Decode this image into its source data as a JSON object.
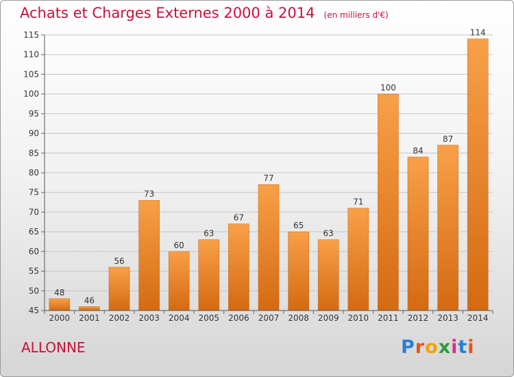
{
  "header": {
    "title": "Achats et Charges Externes 2000 à 2014",
    "unit": "(en milliers d'€)"
  },
  "commune": "ALLONNE",
  "logo": {
    "text": "Proxiti",
    "letter_colors": [
      "#2a7fd4",
      "#e8541a",
      "#f2a400",
      "#2a9d3c",
      "#d8308c",
      "#2a7fd4",
      "#e8541a"
    ]
  },
  "colors": {
    "bar": "#f08c2a",
    "title": "#c8103a"
  },
  "chart_data": {
    "type": "bar",
    "categories": [
      "2000",
      "2001",
      "2002",
      "2003",
      "2004",
      "2005",
      "2006",
      "2007",
      "2008",
      "2009",
      "2010",
      "2011",
      "2012",
      "2013",
      "2014"
    ],
    "values": [
      48,
      46,
      56,
      73,
      60,
      63,
      67,
      77,
      65,
      63,
      71,
      100,
      84,
      87,
      114
    ],
    "ylim": [
      45,
      115
    ],
    "yticks": [
      45,
      50,
      55,
      60,
      65,
      70,
      75,
      80,
      85,
      90,
      95,
      100,
      105,
      110,
      115
    ],
    "grid": true
  }
}
